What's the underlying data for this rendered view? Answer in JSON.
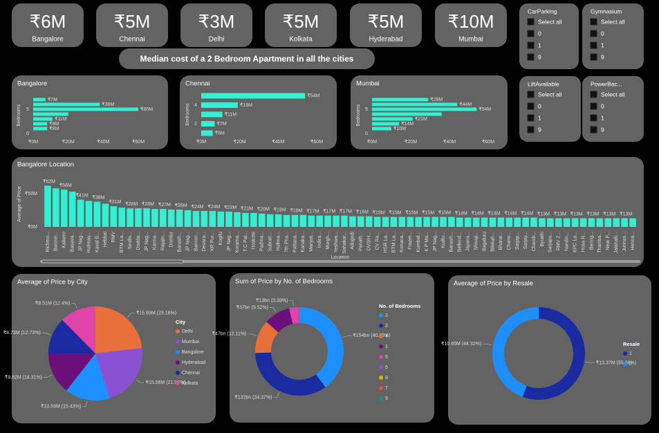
{
  "cards": [
    {
      "value": "₹6M",
      "label": "Bangalore"
    },
    {
      "value": "₹5M",
      "label": "Chennai"
    },
    {
      "value": "₹3M",
      "label": "Delhi"
    },
    {
      "value": "₹5M",
      "label": "Kolkata"
    },
    {
      "value": "₹5M",
      "label": "Hyderabad"
    },
    {
      "value": "₹10M",
      "label": "Mumbai"
    }
  ],
  "banner": "Median cost of a 2 Bedroom Apartment in all the cities",
  "slicers": [
    {
      "title": "CarParking",
      "items": [
        "Select all",
        "0",
        "1",
        "9"
      ]
    },
    {
      "title": "Gymnasium",
      "items": [
        "Select all",
        "0",
        "1",
        "9"
      ]
    },
    {
      "title": "LiftAvailable",
      "items": [
        "Select all",
        "0",
        "1",
        "9"
      ]
    },
    {
      "title": "PowerBac...",
      "items": [
        "Select all",
        "0",
        "1",
        "9"
      ]
    }
  ],
  "chart_data": [
    {
      "type": "hbar",
      "title": "Bangalore",
      "y_label": "Bedrooms",
      "color": "#33f0d2",
      "y": [
        7,
        6,
        5,
        4,
        3,
        2,
        1
      ],
      "ylim": [
        0,
        7.5
      ],
      "yticks": [
        0,
        5
      ],
      "values": [
        7,
        38,
        60,
        20,
        11,
        8,
        8
      ],
      "value_labels": [
        "₹7M",
        "₹38M",
        "₹60M",
        null,
        "₹11M",
        "₹8M",
        "₹8M"
      ],
      "xlim": [
        0,
        60
      ],
      "xticks": [
        {
          "value": 0,
          "label": "₹0M"
        },
        {
          "value": 20,
          "label": "₹20M"
        },
        {
          "value": 40,
          "label": "₹40M"
        },
        {
          "value": 60,
          "label": "₹60M"
        }
      ]
    },
    {
      "type": "hbar",
      "title": "Chennai",
      "y_label": "Bedrooms",
      "color": "#33f0d2",
      "y": [
        5,
        4,
        3,
        2,
        1
      ],
      "ylim": [
        0.4,
        5.6
      ],
      "yticks": [
        2,
        4
      ],
      "values": [
        54,
        19,
        11,
        7,
        6
      ],
      "value_labels": [
        "₹54M",
        "₹19M",
        "₹11M",
        "₹7M",
        "₹6M"
      ],
      "xlim": [
        0,
        60
      ],
      "xticks": [
        {
          "value": 0,
          "label": "₹0M"
        },
        {
          "value": 20,
          "label": "₹20M"
        },
        {
          "value": 40,
          "label": "₹40M"
        },
        {
          "value": 60,
          "label": "₹60M"
        }
      ]
    },
    {
      "type": "hbar",
      "title": "Mumbai",
      "y_label": "Bedrooms",
      "color": "#33f0d2",
      "y": [
        7,
        6,
        5,
        4,
        3,
        2,
        1
      ],
      "ylim": [
        0,
        7.5
      ],
      "yticks": [
        0,
        5
      ],
      "values": [
        29,
        44,
        54,
        36,
        21,
        14,
        10
      ],
      "value_labels": [
        "₹29M",
        "₹44M",
        "₹54M",
        null,
        "₹21M",
        "₹14M",
        "₹10M"
      ],
      "xlim": [
        0,
        60
      ],
      "xticks": [
        {
          "value": 0,
          "label": "₹0M"
        },
        {
          "value": 20,
          "label": "₹20M"
        },
        {
          "value": 40,
          "label": "₹40M"
        },
        {
          "value": 60,
          "label": "₹60M"
        }
      ]
    },
    {
      "type": "bar",
      "title": "Bangalore Location",
      "x_label": "Location",
      "y_label": "Average of Price",
      "color": "#33f0d2",
      "ylim": [
        0,
        68
      ],
      "yticks": [
        {
          "value": 0,
          "label": "₹0M"
        },
        {
          "value": 50,
          "label": "₹50M"
        }
      ],
      "categories": [
        "Richmo...",
        "Banner...",
        "Kalkere",
        "Basava...",
        "JP Nag...",
        "Hulimav...",
        "Kaval B...",
        "Hebbal",
        "RMV",
        "BTM La...",
        "Sindhi...",
        "Dodda...",
        "JP Nag...",
        "Kanna...",
        "Rajajin...",
        "Domlur",
        "Banash...",
        "JP Nag...",
        "Banner...",
        "Devara...",
        "KR Pur...",
        "Kogilu",
        "JP Nag...",
        "Korama...",
        "T C Pal...",
        "Hoskote",
        "Padma...",
        "Subrah...",
        "Hulima...",
        "7th Pha...",
        "Pattana...",
        "Kanaka...",
        "Manyat...",
        "Indira...",
        "Murgh...",
        "Yeshwa...",
        "Sahakar...",
        "Adugodi",
        "Panath...",
        "DVSIH...",
        "CV Ra...",
        "HSR La...",
        "BTM La...",
        "Konana...",
        "Frazer...",
        "Kumbal...",
        "K P Ma...",
        "JP Nag...",
        "Kudlu...",
        "Banash...",
        "Bellend...",
        "Jayana...",
        "Shivaji...",
        "Bagaluru",
        "Bilekah...",
        "Bharat...",
        "Chamr...",
        "Sarjap...",
        "Sarjay...",
        "Chandr...",
        "Byrathi",
        "Sarjapu...",
        "RMV 2...",
        "Nandin...",
        "KPC La...",
        "Hosa R...",
        "Benng...",
        "Thanisa...",
        "Near P...",
        "Jalahalli...",
        "Junnas...",
        "Henna..."
      ],
      "values": [
        62,
        58,
        56,
        53,
        41,
        39,
        38,
        35,
        31,
        29,
        28,
        28,
        28,
        27,
        27,
        26,
        26,
        25,
        24,
        24,
        24,
        23,
        23,
        22,
        21,
        21,
        20,
        19,
        19,
        18,
        18,
        18,
        17,
        17,
        17,
        17,
        17,
        16,
        16,
        16,
        15,
        15,
        15,
        15,
        15,
        15,
        15,
        15,
        15,
        15,
        14,
        14,
        14,
        14,
        14,
        14,
        14,
        14,
        14,
        14,
        13,
        13,
        13,
        13,
        13,
        13,
        13,
        13,
        13,
        13,
        13,
        13
      ],
      "value_labels": [
        "₹62M",
        null,
        "₹56M",
        null,
        "₹41M",
        null,
        "₹38M",
        null,
        "₹31M",
        null,
        "₹28M",
        null,
        "₹28M",
        null,
        "₹27M",
        null,
        "₹26M",
        null,
        "₹24M",
        null,
        "₹24M",
        null,
        "₹23M",
        null,
        "₹21M",
        null,
        "₹20M",
        null,
        "₹19M",
        null,
        "₹18M",
        null,
        "₹17M",
        null,
        "₹17M",
        null,
        "₹17M",
        null,
        "₹16M",
        null,
        "₹15M",
        null,
        "₹15M",
        null,
        "₹15M",
        null,
        "₹15M",
        null,
        "₹15M",
        null,
        "₹14M",
        null,
        "₹14M",
        null,
        "₹14M",
        null,
        "₹14M",
        null,
        "₹14M",
        null,
        "₹13M",
        null,
        "₹13M",
        null,
        "₹13M",
        null,
        "₹13M",
        null,
        "₹13M",
        null,
        "₹13M",
        null
      ]
    },
    {
      "type": "pie",
      "title": "Average of Price by City",
      "legend_title": "City",
      "categories": [
        "Delhi",
        "Mumbai",
        "Bangalore",
        "Hyderabad",
        "Chennai",
        "Kolkata"
      ],
      "values": [
        15.89,
        15.06,
        10.59,
        9.82,
        8.73,
        8.51
      ],
      "value_labels": [
        "₹15.89M (23.16%)",
        "₹15.06M (21.96%)",
        "₹10.59M (15.43%)",
        "₹9.82M (14.31%)",
        "₹8.73M (12.73%)",
        "₹8.51M (12.4%)"
      ],
      "colors": [
        "#e8703a",
        "#8a52d2",
        "#1e8fff",
        "#6b0f7a",
        "#1a2aa0",
        "#e044a8"
      ]
    },
    {
      "type": "donut",
      "title": "Sum of Price by No. of Bedrooms",
      "legend_title": "No. of Bedrooms",
      "categories": [
        "3",
        "2",
        "4",
        "1",
        "5",
        "6",
        "8",
        "7",
        "9"
      ],
      "values": [
        154,
        132,
        47,
        37,
        13,
        0.9,
        0.2,
        0.2,
        0.1
      ],
      "value_labels": [
        "₹154bn (40.06%)",
        "₹132bn (34.37%)",
        "₹47bn (12.11%)",
        "₹37bn (9.52%)",
        "₹13bn (3.39%)",
        null,
        null,
        null,
        null
      ],
      "colors": [
        "#1e8fff",
        "#1a2aa0",
        "#e8703a",
        "#6b0f7a",
        "#e044a8",
        "#8a52d2",
        "#d9b300",
        "#e0533a",
        "#1b8a8a"
      ]
    },
    {
      "type": "donut",
      "title": "Average of Price by Resale",
      "legend_title": "Resale",
      "categories": [
        "1",
        "0"
      ],
      "values": [
        13.37,
        10.65
      ],
      "value_labels": [
        "₹13.37M (55.68%)",
        "₹10.65M (44.32%)"
      ],
      "colors": [
        "#1a2aa0",
        "#1e8fff"
      ]
    }
  ]
}
